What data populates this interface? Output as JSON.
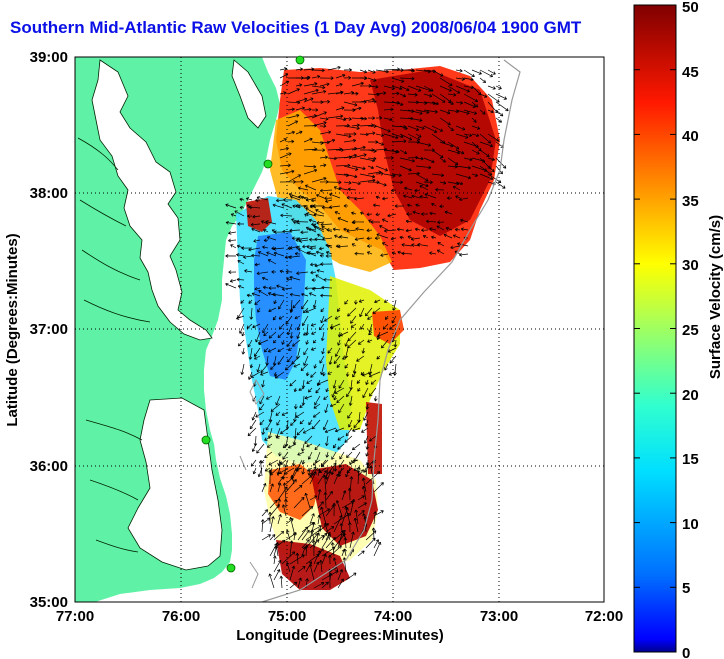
{
  "title": "Southern Mid-Atlantic Raw Velocities (1 Day Avg) 2008/06/04 1900 GMT",
  "x_axis": {
    "label": "Longitude (Degrees:Minutes)",
    "ticks": [
      "77:00",
      "76:00",
      "75:00",
      "74:00",
      "73:00",
      "72:00"
    ]
  },
  "y_axis": {
    "label": "Latitude (Degrees:Minutes)",
    "ticks": [
      "39:00",
      "38:00",
      "37:00",
      "36:00",
      "35:00"
    ]
  },
  "colorbar": {
    "label": "Surface Velocity (cm/s)",
    "ticks": [
      "50",
      "45",
      "40",
      "35",
      "30",
      "25",
      "20",
      "15",
      "10",
      "5",
      "0"
    ],
    "range": [
      0,
      50
    ],
    "colormap": "jet"
  },
  "colors": {
    "land": "#5ff2a7",
    "ocean": "#ffffff",
    "title": "#0a10e6",
    "site_marker": "#22dd22",
    "bathymetry": "#999999"
  },
  "map": {
    "lon_range": [
      -77,
      -72
    ],
    "lat_range": [
      35,
      39
    ],
    "grid": "dotted",
    "site_markers": 4
  }
}
